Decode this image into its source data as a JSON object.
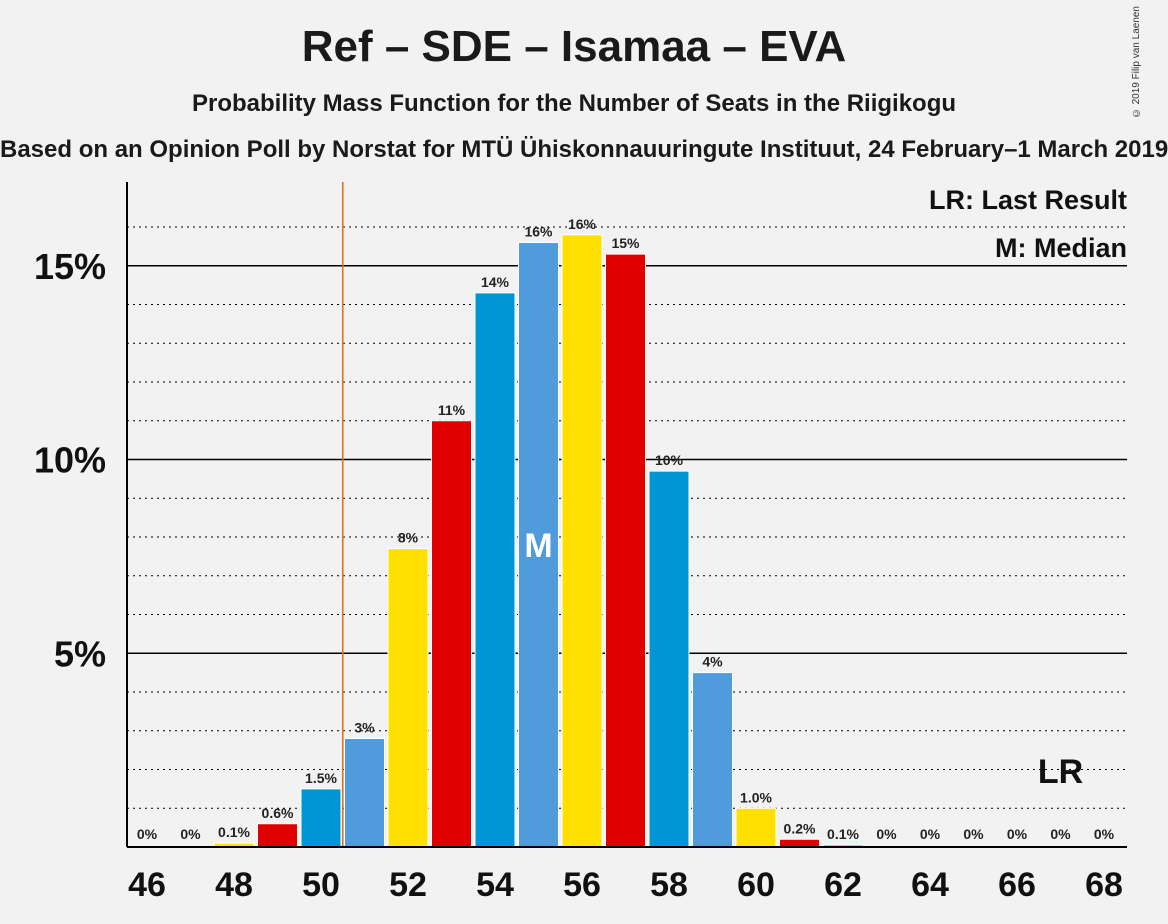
{
  "chart_data": {
    "type": "bar",
    "title": "Ref – SDE – Isamaa – EVA",
    "subtitle": "Probability Mass Function for the Number of Seats in the Riigikogu",
    "source": "Based on an Opinion Poll by Norstat for MTÜ Ühiskonnauuringute Instituut, 24 February–1 March 2019",
    "copyright": "© 2019 Filip van Laenen",
    "x": [
      46,
      47,
      48,
      49,
      50,
      51,
      52,
      53,
      54,
      55,
      56,
      57,
      58,
      59,
      60,
      61,
      62,
      63,
      64,
      65,
      66,
      67,
      68
    ],
    "values": [
      0,
      0,
      0.1,
      0.6,
      1.5,
      2.8,
      7.7,
      11.0,
      14.3,
      15.6,
      15.8,
      15.3,
      9.7,
      4.5,
      1.0,
      0.2,
      0.05,
      0,
      0,
      0,
      0,
      0,
      0
    ],
    "data_labels": [
      "0%",
      "0%",
      "0.1%",
      "0.6%",
      "1.5%",
      "3%",
      "8%",
      "11%",
      "14%",
      "16%",
      "16%",
      "15%",
      "10%",
      "4%",
      "1.0%",
      "0.2%",
      "0.1%",
      "0%",
      "0%",
      "0%",
      "0%",
      "0%",
      "0%"
    ],
    "bar_colors": [
      "#e00000",
      "#0096d6",
      "#ffe000",
      "#e00000",
      "#0096d6",
      "#4f9bdb",
      "#ffe000",
      "#e00000",
      "#0096d6",
      "#4f9bdb",
      "#ffe000",
      "#e00000",
      "#0096d6",
      "#4f9bdb",
      "#ffe000",
      "#e00000",
      "#0096d6",
      "#4f9bdb",
      "#ffe000",
      "#e00000",
      "#0096d6",
      "#4f9bdb",
      "#ffe000"
    ],
    "x_ticks": [
      46,
      48,
      50,
      52,
      54,
      56,
      58,
      60,
      62,
      64,
      66,
      68
    ],
    "y_ticks": [
      5,
      10,
      15
    ],
    "y_tick_labels": [
      "5%",
      "10%",
      "15%"
    ],
    "ylim": [
      0,
      17
    ],
    "last_result": 50.5,
    "last_result_label": "LR",
    "last_result_label_x": 67,
    "median": 55,
    "median_label": "M",
    "legend": [
      "LR: Last Result",
      "M: Median"
    ],
    "legend_position": "top-right",
    "colors": {
      "lr_line": "#e07020",
      "axis": "#000000"
    }
  }
}
